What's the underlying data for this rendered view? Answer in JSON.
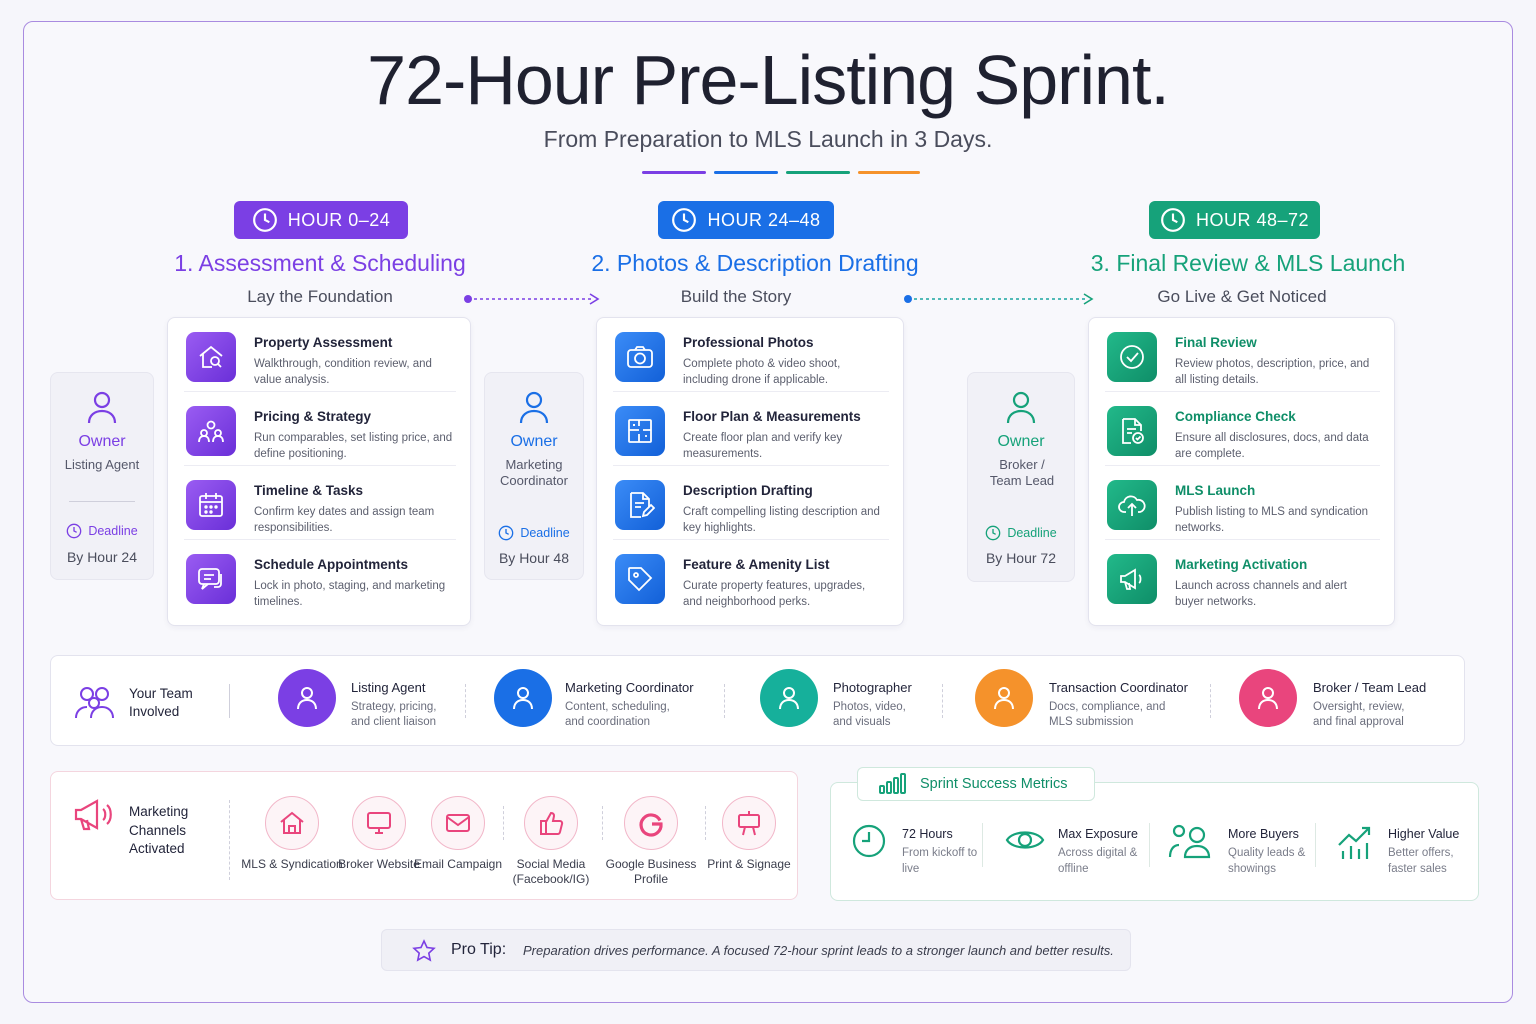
{
  "header": {
    "title": "72-Hour Pre-Listing Sprint.",
    "subtitle": "From Preparation to MLS Launch in 3 Days."
  },
  "colors": {
    "purple": "#7b3fe4",
    "blue": "#1a6fe6",
    "green": "#16a27a",
    "orange": "#f5922b",
    "pink": "#e9457d"
  },
  "phases": [
    {
      "hour_label": "HOUR 0–24",
      "title": "1. Assessment & Scheduling",
      "subtitle": "Lay the Foundation",
      "owner": {
        "label": "Owner",
        "role": "Listing Agent",
        "deadline_label": "Deadline",
        "deadline": "By Hour 24"
      },
      "tasks": [
        {
          "icon": "house-search-icon",
          "title": "Property Assessment",
          "desc": "Walkthrough, condition review, and value analysis."
        },
        {
          "icon": "people-icon",
          "title": "Pricing & Strategy",
          "desc": "Run comparables, set listing price, and define positioning."
        },
        {
          "icon": "calendar-icon",
          "title": "Timeline & Tasks",
          "desc": "Confirm key dates and assign team responsibilities."
        },
        {
          "icon": "chat-icon",
          "title": "Schedule Appointments",
          "desc": "Lock in photo, staging, and marketing timelines."
        }
      ]
    },
    {
      "hour_label": "HOUR 24–48",
      "title": "2. Photos & Description Drafting",
      "subtitle": "Build the Story",
      "owner": {
        "label": "Owner",
        "role": "Marketing Coordinator",
        "deadline_label": "Deadline",
        "deadline": "By Hour 48"
      },
      "tasks": [
        {
          "icon": "camera-icon",
          "title": "Professional Photos",
          "desc": "Complete photo & video shoot, including drone if applicable."
        },
        {
          "icon": "floorplan-icon",
          "title": "Floor Plan & Measurements",
          "desc": "Create floor plan and verify key measurements."
        },
        {
          "icon": "document-edit-icon",
          "title": "Description Drafting",
          "desc": "Craft compelling listing description and key highlights."
        },
        {
          "icon": "tag-icon",
          "title": "Feature & Amenity List",
          "desc": "Curate property features, upgrades, and neighborhood perks."
        }
      ]
    },
    {
      "hour_label": "HOUR 48–72",
      "title": "3. Final Review & MLS Launch",
      "subtitle": "Go Live & Get Noticed",
      "owner": {
        "label": "Owner",
        "role": "Broker / Team Lead",
        "deadline_label": "Deadline",
        "deadline": "By Hour 72"
      },
      "tasks": [
        {
          "icon": "check-circle-icon",
          "title": "Final Review",
          "desc": "Review photos, description, price, and all listing details."
        },
        {
          "icon": "document-check-icon",
          "title": "Compliance Check",
          "desc": "Ensure all disclosures, docs, and data are complete."
        },
        {
          "icon": "cloud-upload-icon",
          "title": "MLS Launch",
          "desc": "Publish listing to MLS and syndication networks."
        },
        {
          "icon": "megaphone-icon",
          "title": "Marketing Activation",
          "desc": "Launch across channels and alert buyer networks."
        }
      ]
    }
  ],
  "team": {
    "label": "Your Team Involved",
    "members": [
      {
        "name": "Listing Agent",
        "desc": "Strategy, pricing, and client liaison",
        "color": "#7b3fe4"
      },
      {
        "name": "Marketing Coordinator",
        "desc": "Content, scheduling, and coordination",
        "color": "#1a6fe6"
      },
      {
        "name": "Photographer",
        "desc": "Photos, video, and visuals",
        "color": "#16b09b"
      },
      {
        "name": "Transaction Coordinator",
        "desc": "Docs, compliance, and MLS submission",
        "color": "#f5922b"
      },
      {
        "name": "Broker / Team Lead",
        "desc": "Oversight, review, and final approval",
        "color": "#e9457d"
      }
    ]
  },
  "channels": {
    "label": "Marketing Channels Activated",
    "items": [
      {
        "icon": "house-icon",
        "label": "MLS & Syndication"
      },
      {
        "icon": "monitor-icon",
        "label": "Broker Website"
      },
      {
        "icon": "mail-icon",
        "label": "Email Campaign"
      },
      {
        "icon": "thumbs-up-icon",
        "label": "Social Media (Facebook/IG)"
      },
      {
        "icon": "google-icon",
        "label": "Google Business Profile"
      },
      {
        "icon": "signage-icon",
        "label": "Print & Signage"
      }
    ]
  },
  "metrics": {
    "label": "Sprint Success Metrics",
    "items": [
      {
        "icon": "clock-icon",
        "title": "72 Hours",
        "desc": "From kickoff to live"
      },
      {
        "icon": "eye-icon",
        "title": "Max Exposure",
        "desc": "Across digital & offline"
      },
      {
        "icon": "people-icon",
        "title": "More Buyers",
        "desc": "Quality leads & showings"
      },
      {
        "icon": "trend-up-icon",
        "title": "Higher Value",
        "desc": "Better offers, faster sales"
      }
    ]
  },
  "tip": {
    "label": "Pro Tip:",
    "text": "Preparation drives performance. A focused 72-hour sprint leads to a stronger launch and better results."
  }
}
